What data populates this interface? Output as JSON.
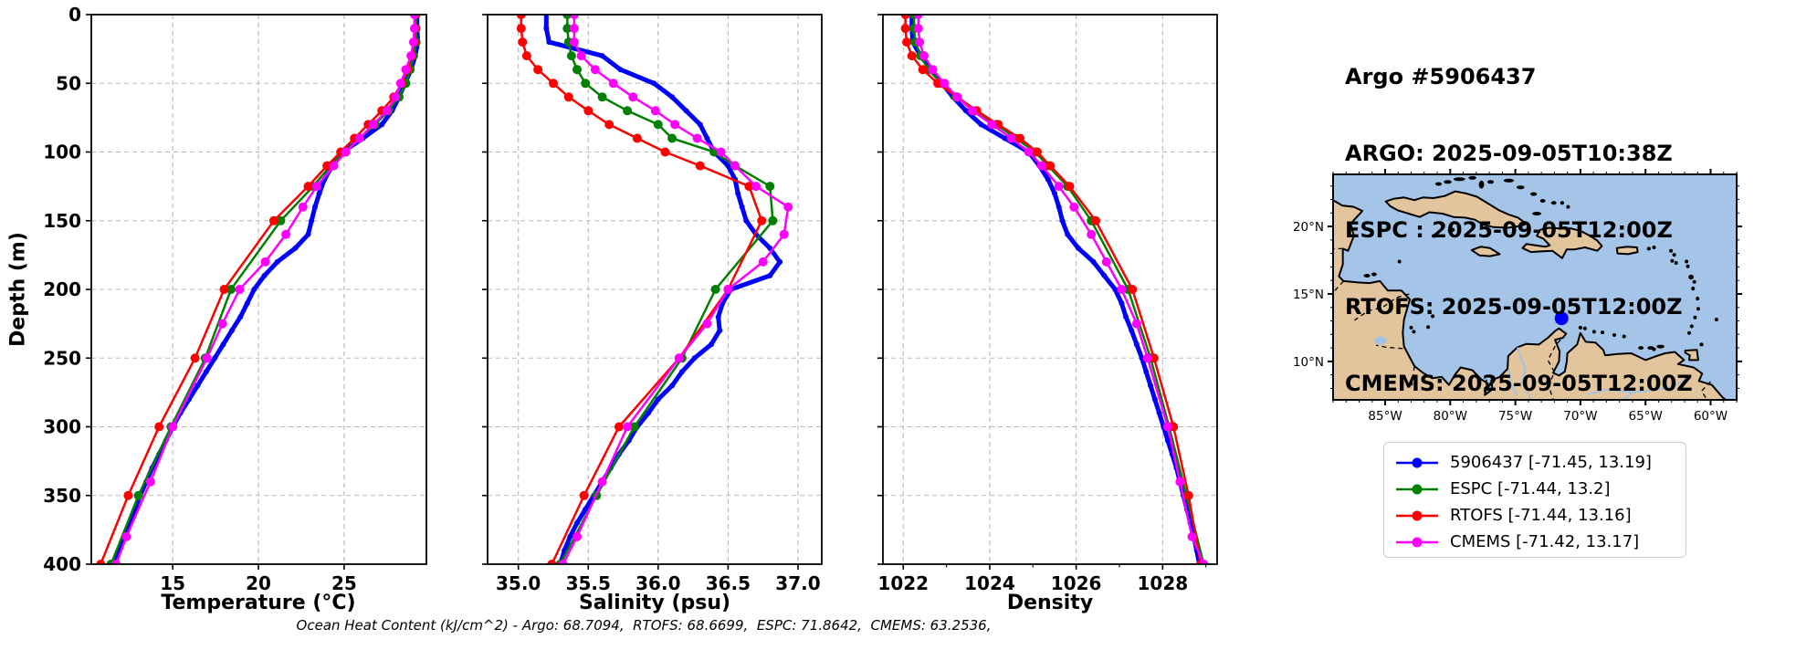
{
  "header": {
    "lines": [
      "Argo #5906437",
      "ARGO: 2025-09-05T10:38Z",
      "ESPC : 2025-09-05T12:00Z",
      "RTOFS: 2025-09-05T12:00Z",
      "CMEMS: 2025-09-05T12:00Z"
    ]
  },
  "caption": "Ocean Heat Content (kJ/cm^2) - Argo: 68.7094,  RTOFS: 68.6699,  ESPC: 71.8642,  CMEMS: 63.2536,",
  "chart_data": {
    "type": "line",
    "orientation": "depth-profile",
    "grid": true,
    "depth_axis": {
      "label": "Depth (m)",
      "range": [
        0,
        400
      ],
      "ticks": [
        0,
        50,
        100,
        150,
        200,
        250,
        300,
        350,
        400
      ],
      "tick_labels": [
        "0",
        "50",
        "100",
        "150",
        "200",
        "250",
        "300",
        "350",
        "400"
      ]
    },
    "panels": [
      {
        "xlabel": "Temperature (°C)",
        "xlim": [
          10.25,
          29.8
        ],
        "xticks": [
          15,
          20,
          25
        ],
        "xtick_labels": [
          "15",
          "20",
          "25"
        ],
        "minor_xticks": [],
        "value_key": "temperature"
      },
      {
        "xlabel": "Salinity (psu)",
        "xlim": [
          34.78,
          37.17
        ],
        "xticks": [
          35.0,
          35.5,
          36.0,
          36.5,
          37.0
        ],
        "xtick_labels": [
          "35.0",
          "35.5",
          "36.0",
          "36.5",
          "37.0"
        ],
        "minor_xticks": [],
        "value_key": "salinity"
      },
      {
        "xlabel": "Density",
        "xlim": [
          1021.53,
          1029.26
        ],
        "xticks": [
          1022,
          1024,
          1026,
          1028
        ],
        "xtick_labels": [
          "1022",
          "1024",
          "1026",
          "1028"
        ],
        "minor_xticks": [
          1023,
          1025,
          1027,
          1029
        ],
        "value_key": "density"
      }
    ],
    "series": [
      {
        "id": "argo",
        "legend": "5906437 [-71.45, 13.19]",
        "color": "#0000ff",
        "line_width": 5,
        "marker_radius": 3,
        "depths": [
          0,
          10,
          20,
          30,
          40,
          50,
          60,
          70,
          80,
          90,
          100,
          110,
          120,
          130,
          140,
          150,
          160,
          170,
          180,
          190,
          200,
          210,
          220,
          230,
          240,
          250,
          260,
          270,
          280,
          290,
          300,
          310,
          320,
          330,
          340,
          350,
          360,
          370,
          380,
          390,
          400
        ],
        "temperature": [
          29.25,
          29.25,
          29.3,
          29.15,
          28.9,
          28.55,
          28.2,
          27.8,
          27.2,
          26.1,
          24.9,
          24.3,
          23.85,
          23.55,
          23.3,
          23.1,
          22.9,
          22.15,
          21.1,
          20.35,
          19.75,
          19.35,
          18.95,
          18.45,
          17.95,
          17.45,
          16.95,
          16.45,
          15.95,
          15.45,
          15.0,
          14.6,
          14.2,
          13.8,
          13.45,
          13.1,
          12.8,
          12.5,
          12.2,
          11.9,
          11.6
        ],
        "salinity": [
          35.2,
          35.2,
          35.22,
          35.6,
          35.73,
          35.97,
          36.1,
          36.2,
          36.3,
          36.35,
          36.4,
          36.5,
          36.55,
          36.57,
          36.6,
          36.63,
          36.7,
          36.8,
          36.87,
          36.8,
          36.52,
          36.46,
          36.43,
          36.44,
          36.38,
          36.26,
          36.17,
          36.1,
          36.0,
          35.93,
          35.85,
          35.79,
          35.72,
          35.66,
          35.6,
          35.54,
          35.48,
          35.42,
          35.37,
          35.33,
          35.3
        ],
        "density": [
          1022.2,
          1022.2,
          1022.22,
          1022.4,
          1022.65,
          1022.9,
          1023.15,
          1023.45,
          1023.8,
          1024.35,
          1024.9,
          1025.15,
          1025.35,
          1025.5,
          1025.6,
          1025.68,
          1025.8,
          1026.05,
          1026.4,
          1026.65,
          1026.9,
          1027.05,
          1027.15,
          1027.28,
          1027.4,
          1027.52,
          1027.62,
          1027.72,
          1027.82,
          1027.92,
          1028.02,
          1028.12,
          1028.22,
          1028.32,
          1028.4,
          1028.48,
          1028.56,
          1028.64,
          1028.72,
          1028.79,
          1028.85
        ]
      },
      {
        "id": "espc",
        "legend": "ESPC [-71.44, 13.2]",
        "color": "#008000",
        "line_width": 2.5,
        "marker_radius": 5,
        "depths": [
          0,
          10,
          20,
          30,
          40,
          50,
          60,
          70,
          80,
          90,
          100,
          110,
          125,
          150,
          200,
          250,
          300,
          350,
          400
        ],
        "temperature": [
          29.2,
          29.2,
          29.2,
          29.05,
          28.85,
          28.6,
          28.2,
          27.6,
          26.8,
          25.9,
          25.0,
          24.2,
          23.2,
          21.3,
          18.4,
          16.9,
          14.9,
          13.0,
          11.4
        ],
        "salinity": [
          35.35,
          35.35,
          35.36,
          35.38,
          35.42,
          35.48,
          35.6,
          35.78,
          36.0,
          36.1,
          36.4,
          36.55,
          36.8,
          36.82,
          36.41,
          36.17,
          35.83,
          35.56,
          35.3
        ],
        "density": [
          1022.25,
          1022.25,
          1022.28,
          1022.4,
          1022.58,
          1022.88,
          1023.22,
          1023.66,
          1024.15,
          1024.6,
          1025.05,
          1025.35,
          1025.8,
          1026.35,
          1027.2,
          1027.72,
          1028.15,
          1028.55,
          1028.95
        ]
      },
      {
        "id": "rtofs",
        "legend": "RTOFS [-71.44, 13.16]",
        "color": "#ff0000",
        "line_width": 2.5,
        "marker_radius": 5,
        "depths": [
          0,
          10,
          20,
          30,
          40,
          50,
          60,
          70,
          80,
          90,
          100,
          110,
          125,
          150,
          200,
          250,
          300,
          350,
          400
        ],
        "temperature": [
          29.15,
          29.15,
          29.1,
          28.95,
          28.7,
          28.35,
          27.9,
          27.2,
          26.4,
          25.6,
          24.8,
          24.0,
          22.9,
          20.9,
          18.0,
          16.3,
          14.2,
          12.4,
          10.8
        ],
        "salinity": [
          35.02,
          35.02,
          35.03,
          35.06,
          35.14,
          35.25,
          35.36,
          35.5,
          35.65,
          35.85,
          36.05,
          36.3,
          36.65,
          36.74,
          36.5,
          36.15,
          35.72,
          35.47,
          35.24
        ],
        "density": [
          1022.05,
          1022.05,
          1022.08,
          1022.2,
          1022.45,
          1022.8,
          1023.25,
          1023.7,
          1024.2,
          1024.7,
          1025.1,
          1025.4,
          1025.85,
          1026.45,
          1027.3,
          1027.8,
          1028.25,
          1028.6,
          1028.88
        ]
      },
      {
        "id": "cmems",
        "legend": "CMEMS [-71.42, 13.17]",
        "color": "#ff00ff",
        "line_width": 2.5,
        "marker_radius": 5,
        "depths": [
          0,
          10,
          20,
          30,
          40,
          50,
          60,
          70,
          80,
          90,
          100,
          110,
          125,
          140,
          160,
          180,
          200,
          225,
          250,
          300,
          340,
          380,
          400
        ],
        "temperature": [
          29.1,
          29.1,
          29.05,
          28.9,
          28.6,
          28.3,
          28.0,
          27.5,
          26.7,
          25.9,
          25.1,
          24.4,
          23.4,
          22.6,
          21.6,
          20.4,
          18.9,
          17.9,
          17.0,
          15.0,
          13.7,
          12.3,
          11.7
        ],
        "salinity": [
          35.4,
          35.4,
          35.4,
          35.45,
          35.55,
          35.68,
          35.82,
          35.98,
          36.12,
          36.28,
          36.45,
          36.55,
          36.7,
          36.93,
          36.9,
          36.75,
          36.5,
          36.35,
          36.15,
          35.78,
          35.6,
          35.42,
          35.32
        ],
        "density": [
          1022.35,
          1022.35,
          1022.38,
          1022.48,
          1022.68,
          1022.95,
          1023.25,
          1023.6,
          1024.05,
          1024.5,
          1024.9,
          1025.2,
          1025.6,
          1025.95,
          1026.35,
          1026.7,
          1027.05,
          1027.4,
          1027.65,
          1028.12,
          1028.4,
          1028.68,
          1028.95
        ]
      }
    ]
  },
  "map": {
    "extent": {
      "lon_min": -89,
      "lon_max": -58,
      "lat_min": 7.15,
      "lat_max": 23.86
    },
    "lon_ticks": [
      -85,
      -80,
      -75,
      -70,
      -65,
      -60
    ],
    "lon_tick_labels": [
      "85°W",
      "80°W",
      "75°W",
      "70°W",
      "65°W",
      "60°W"
    ],
    "lat_ticks": [
      20,
      15,
      10
    ],
    "lat_tick_labels": [
      "20°N",
      "15°N",
      "10°N"
    ],
    "ocean_color": "#a5c5e8",
    "land_color": "#e3c59d",
    "coast_color": "#000000",
    "river_color": "#9fc2e8",
    "float_marker": {
      "lon": -71.45,
      "lat": 13.19,
      "color": "#0000ff"
    }
  }
}
